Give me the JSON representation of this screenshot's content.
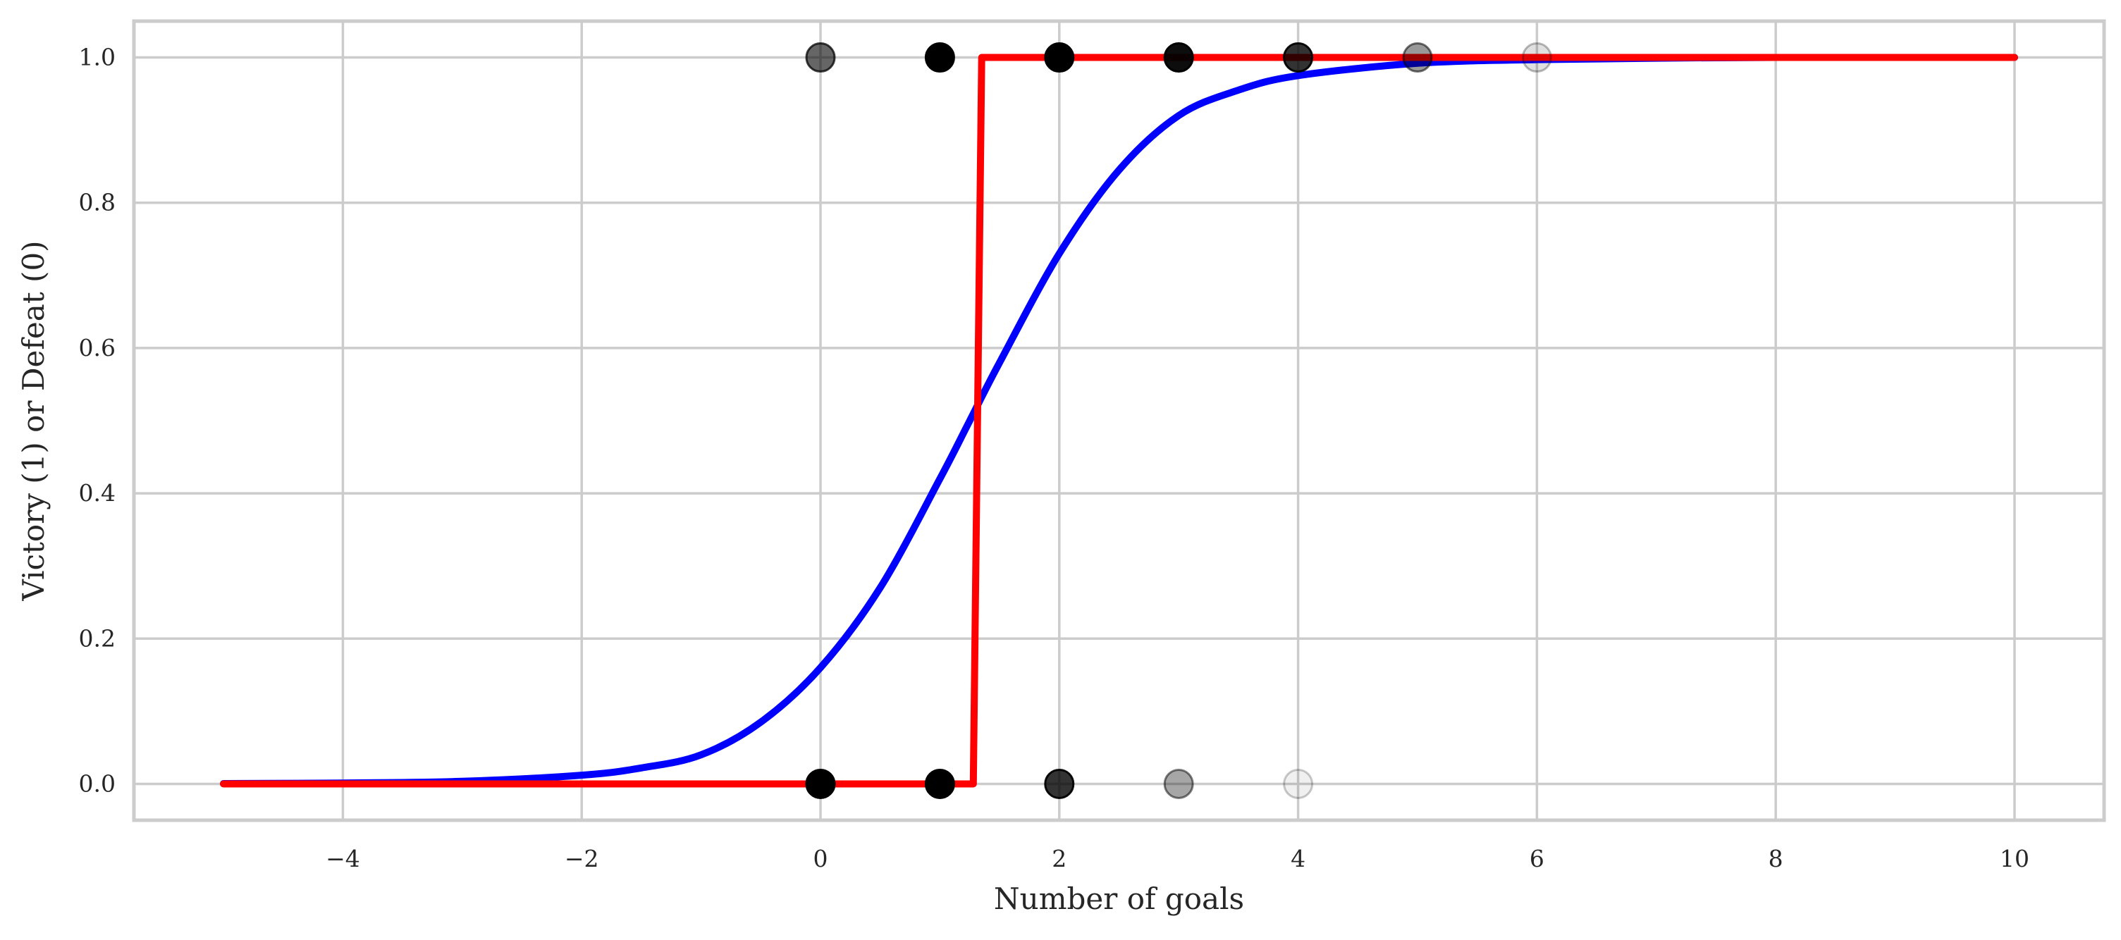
{
  "chart_data": {
    "type": "scatter",
    "title": "",
    "xlabel": "Number of goals",
    "ylabel": "Victory (1) or Defeat (0)",
    "xlim": [
      -5.75,
      10.75
    ],
    "ylim": [
      -0.05,
      1.05
    ],
    "x_ticks": [
      -4,
      -2,
      0,
      2,
      4,
      6,
      8,
      10
    ],
    "y_ticks": [
      0.0,
      0.2,
      0.4,
      0.6,
      0.8,
      1.0
    ],
    "x_tick_labels": [
      "−4",
      "−2",
      "0",
      "2",
      "4",
      "6",
      "8",
      "10"
    ],
    "y_tick_labels": [
      "0.0",
      "0.2",
      "0.4",
      "0.6",
      "0.8",
      "1.0"
    ],
    "grid": true,
    "colors": {
      "points": "#000000",
      "logistic_curve": "#0000ff",
      "step_line": "#ff0000",
      "grid": "#cccccc",
      "spine": "#cccccc"
    },
    "points": [
      {
        "x": 0,
        "y": 1,
        "opacity": 0.6
      },
      {
        "x": 1,
        "y": 1,
        "opacity": 1.0
      },
      {
        "x": 2,
        "y": 1,
        "opacity": 1.0
      },
      {
        "x": 3,
        "y": 1,
        "opacity": 0.95
      },
      {
        "x": 4,
        "y": 1,
        "opacity": 0.8
      },
      {
        "x": 5,
        "y": 1,
        "opacity": 0.4
      },
      {
        "x": 6,
        "y": 1,
        "opacity": 0.12
      },
      {
        "x": 0,
        "y": 0,
        "opacity": 1.0
      },
      {
        "x": 1,
        "y": 0,
        "opacity": 1.0
      },
      {
        "x": 2,
        "y": 0,
        "opacity": 0.8
      },
      {
        "x": 3,
        "y": 0,
        "opacity": 0.35
      },
      {
        "x": 4,
        "y": 0,
        "opacity": 0.06
      }
    ],
    "series": [
      {
        "color": "#0000ff",
        "x": [
          -5,
          -4,
          -3,
          -2,
          -1.5,
          -1,
          -0.5,
          0,
          0.5,
          1,
          1.25,
          1.5,
          2,
          2.5,
          3,
          3.5,
          4,
          5,
          6,
          7,
          8,
          10
        ],
        "y": [
          0.0004,
          0.0012,
          0.0035,
          0.012,
          0.022,
          0.04,
          0.085,
          0.16,
          0.27,
          0.42,
          0.5,
          0.58,
          0.73,
          0.845,
          0.92,
          0.955,
          0.975,
          0.992,
          0.997,
          0.999,
          1.0,
          1.0
        ]
      },
      {
        "color": "#ff0000",
        "x": [
          -5,
          1.28,
          1.35,
          10
        ],
        "y": [
          0,
          0,
          1,
          1
        ]
      }
    ]
  }
}
